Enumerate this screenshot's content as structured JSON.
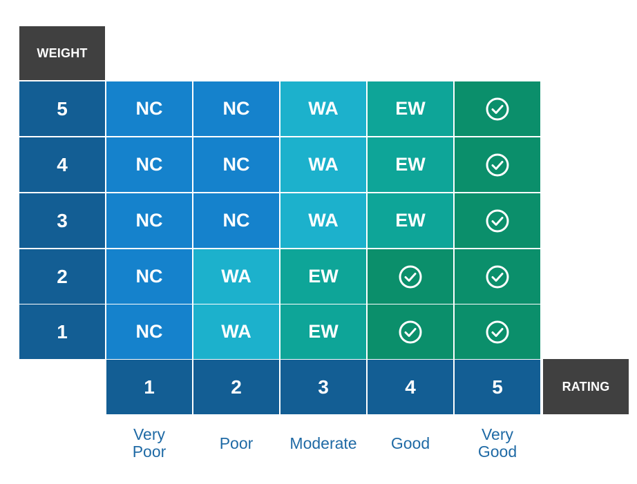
{
  "labels": {
    "weight": "WEIGHT",
    "rating": "RATING"
  },
  "weights": [
    "5",
    "4",
    "3",
    "2",
    "1"
  ],
  "ratings": [
    "1",
    "2",
    "3",
    "4",
    "5"
  ],
  "rating_words": [
    "Very\nPoor",
    "Poor",
    "Moderate",
    "Good",
    "Very\nGood"
  ],
  "matrix": [
    [
      "NC",
      "NC",
      "WA",
      "EW",
      "check"
    ],
    [
      "NC",
      "NC",
      "WA",
      "EW",
      "check"
    ],
    [
      "NC",
      "NC",
      "WA",
      "EW",
      "check"
    ],
    [
      "NC",
      "WA",
      "EW",
      "check",
      "check"
    ],
    [
      "NC",
      "WA",
      "EW",
      "check",
      "check"
    ]
  ],
  "colors": {
    "NC": "#1582cc",
    "WA": "#1cb1cc",
    "EW": "#0ea598",
    "check": "#0b8f6b",
    "axis": "#135e94",
    "tag": "#404040",
    "word": "#1f6aa5"
  },
  "icons": {
    "check": "check-circle-icon"
  }
}
